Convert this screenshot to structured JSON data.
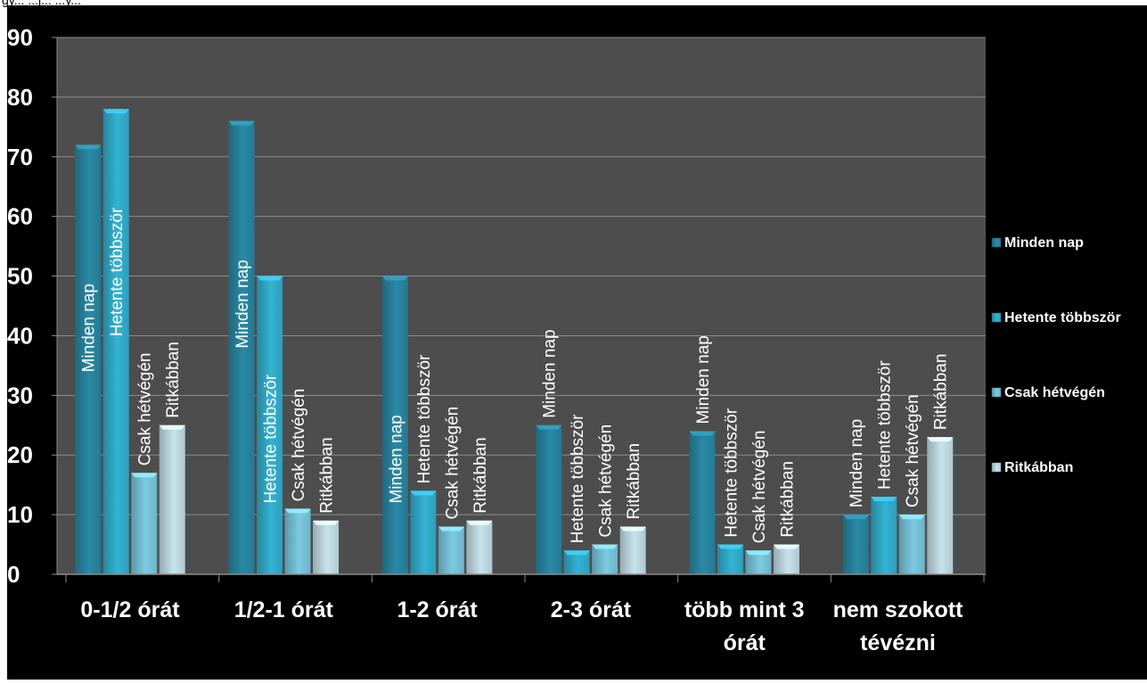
{
  "top_fragment": "gy... ...j... ...y...",
  "chart_data": {
    "type": "bar",
    "title": "",
    "xlabel": "",
    "ylabel": "",
    "ylim": [
      0,
      90
    ],
    "y_ticks": [
      "0",
      "10",
      "20",
      "30",
      "40",
      "50",
      "60",
      "70",
      "80",
      "90"
    ],
    "grid": true,
    "legend_position": "right",
    "categories": [
      [
        "0-1/2 órát"
      ],
      [
        "1/2-1 órát"
      ],
      [
        "1-2 órát"
      ],
      [
        "2-3 órát"
      ],
      [
        "több mint 3",
        "órát"
      ],
      [
        "nem szokott",
        "tévézni"
      ]
    ],
    "series": [
      {
        "name": "Minden nap",
        "color": "#2a8aa6",
        "values": [
          72,
          76,
          50,
          25,
          24,
          10
        ]
      },
      {
        "name": "Hetente többször",
        "color": "#34b3d4",
        "values": [
          78,
          50,
          14,
          4,
          5,
          13
        ]
      },
      {
        "name": "Csak hétvégén",
        "color": "#7ccbe2",
        "values": [
          17,
          11,
          8,
          5,
          4,
          10
        ]
      },
      {
        "name": "Ritkábban",
        "color": "#c8e3ec",
        "values": [
          25,
          9,
          9,
          8,
          5,
          23
        ]
      }
    ]
  },
  "colors": {
    "page_background": "#ffffff",
    "outer_background": "#000000",
    "plot_background": "#4d4d4d",
    "gridline": "#8c8c8c",
    "text": "#ffffff"
  }
}
